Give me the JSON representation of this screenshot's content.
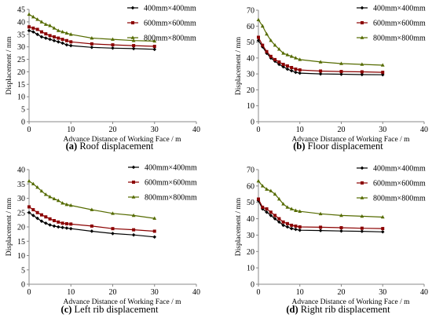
{
  "chart_data": [
    {
      "type": "line",
      "caption_letter": "(a)",
      "caption_text": " Roof displacement",
      "xlabel": "Advance Distance of Working Face / m",
      "ylabel": "Displacement / mm",
      "xlim": [
        0,
        40
      ],
      "ylim": [
        0,
        45
      ],
      "xticks": [
        0,
        10,
        20,
        30,
        40
      ],
      "yticks": [
        0,
        5,
        10,
        15,
        20,
        25,
        30,
        35,
        40,
        45
      ],
      "grid": false,
      "legend_position": "top-right",
      "series": [
        {
          "name": "400mm×400mm",
          "color": "#000000",
          "marker": "diamond",
          "x": [
            0,
            1,
            2,
            3,
            4,
            5,
            6,
            7,
            8,
            9,
            10,
            15,
            20,
            25,
            30
          ],
          "y": [
            36.5,
            36,
            35,
            34,
            33.5,
            33,
            32.5,
            32,
            31.5,
            30.8,
            30.5,
            29.8,
            29.5,
            29.3,
            29
          ]
        },
        {
          "name": "600mm×600mm",
          "color": "#8b0000",
          "marker": "square",
          "x": [
            0,
            1,
            2,
            3,
            4,
            5,
            6,
            7,
            8,
            9,
            10,
            15,
            20,
            25,
            30
          ],
          "y": [
            38,
            37.5,
            37,
            36,
            35.2,
            34.5,
            34,
            33.5,
            33,
            32.5,
            32,
            31.2,
            30.8,
            30.5,
            30.2
          ]
        },
        {
          "name": "800mm×800mm",
          "color": "#556b00",
          "marker": "triangle",
          "x": [
            0,
            1,
            2,
            3,
            4,
            5,
            6,
            7,
            8,
            9,
            10,
            15,
            20,
            25,
            30
          ],
          "y": [
            43,
            42,
            41,
            40,
            39,
            38.5,
            37.5,
            36.5,
            36,
            35.5,
            35,
            33.5,
            33,
            32.5,
            32.3
          ]
        }
      ]
    },
    {
      "type": "line",
      "caption_letter": "(b)",
      "caption_text": " Floor displacement",
      "xlabel": "Advance Distance of Working Face / m",
      "ylabel": "Displacement / mm",
      "xlim": [
        0,
        40
      ],
      "ylim": [
        0,
        70
      ],
      "xticks": [
        0,
        10,
        20,
        30,
        40
      ],
      "yticks": [
        0,
        10,
        20,
        30,
        40,
        50,
        60,
        70
      ],
      "grid": false,
      "legend_position": "top-right",
      "series": [
        {
          "name": "400mm×400mm",
          "color": "#000000",
          "marker": "diamond",
          "x": [
            0,
            1,
            2,
            3,
            4,
            5,
            6,
            7,
            8,
            9,
            10,
            15,
            20,
            25,
            30
          ],
          "y": [
            51,
            47,
            43,
            40,
            38,
            36,
            34.5,
            33,
            32,
            31,
            30.5,
            30,
            29.8,
            29.6,
            29.5
          ]
        },
        {
          "name": "600mm×600mm",
          "color": "#8b0000",
          "marker": "square",
          "x": [
            0,
            1,
            2,
            3,
            4,
            5,
            6,
            7,
            8,
            9,
            10,
            15,
            20,
            25,
            30
          ],
          "y": [
            53,
            48,
            44,
            41,
            39,
            37.5,
            36,
            35,
            34,
            33,
            32.5,
            31.8,
            31.5,
            31.3,
            31
          ]
        },
        {
          "name": "800mm×800mm",
          "color": "#556b00",
          "marker": "triangle",
          "x": [
            0,
            1,
            2,
            3,
            4,
            5,
            6,
            7,
            8,
            9,
            10,
            15,
            20,
            25,
            30
          ],
          "y": [
            64,
            60,
            55,
            51,
            48,
            45.5,
            43,
            42,
            41,
            40,
            39,
            37.5,
            36.5,
            36,
            35.5
          ]
        }
      ]
    },
    {
      "type": "line",
      "caption_letter": "(c)",
      "caption_text": " Left rib displacement",
      "xlabel": "Advance Distance of Working Face / m",
      "ylabel": "Displacement / mm",
      "xlim": [
        0,
        40
      ],
      "ylim": [
        0,
        40
      ],
      "xticks": [
        0,
        10,
        20,
        30,
        40
      ],
      "yticks": [
        0,
        5,
        10,
        15,
        20,
        25,
        30,
        35,
        40
      ],
      "grid": false,
      "legend_position": "top-right",
      "series": [
        {
          "name": "400mm×400mm",
          "color": "#000000",
          "marker": "diamond",
          "x": [
            0,
            1,
            2,
            3,
            4,
            5,
            6,
            7,
            8,
            9,
            10,
            15,
            20,
            25,
            30
          ],
          "y": [
            25,
            24,
            23,
            22,
            21.3,
            20.7,
            20.3,
            20,
            19.8,
            19.6,
            19.4,
            18.5,
            17.7,
            17.2,
            16.5
          ]
        },
        {
          "name": "600mm×600mm",
          "color": "#8b0000",
          "marker": "square",
          "x": [
            0,
            1,
            2,
            3,
            4,
            5,
            6,
            7,
            8,
            9,
            10,
            15,
            20,
            25,
            30
          ],
          "y": [
            27,
            26,
            25,
            24.2,
            23.5,
            22.8,
            22.2,
            21.7,
            21.3,
            21.1,
            21,
            20.3,
            19.4,
            19,
            18.5
          ]
        },
        {
          "name": "800mm×800mm",
          "color": "#556b00",
          "marker": "triangle",
          "x": [
            0,
            1,
            2,
            3,
            4,
            5,
            6,
            7,
            8,
            9,
            10,
            15,
            20,
            25,
            30
          ],
          "y": [
            36,
            35,
            33.8,
            32.5,
            31.3,
            30.5,
            29.8,
            29.2,
            28.3,
            27.8,
            27.5,
            26,
            24.7,
            24,
            23
          ]
        }
      ]
    },
    {
      "type": "line",
      "caption_letter": "(d)",
      "caption_text": " Right rib displacement",
      "xlabel": "Advance Distance of Working Face / m",
      "ylabel": "Displacement / mm",
      "xlim": [
        0,
        40
      ],
      "ylim": [
        0,
        70
      ],
      "xticks": [
        0,
        10,
        20,
        30,
        40
      ],
      "yticks": [
        0,
        10,
        20,
        30,
        40,
        50,
        60,
        70
      ],
      "grid": false,
      "legend_position": "top-right",
      "series": [
        {
          "name": "400mm×400mm",
          "color": "#000000",
          "marker": "diamond",
          "x": [
            0,
            1,
            2,
            3,
            4,
            5,
            6,
            7,
            8,
            9,
            10,
            15,
            20,
            25,
            30
          ],
          "y": [
            51,
            46,
            44,
            42,
            40,
            38,
            36,
            35,
            34,
            33.5,
            33,
            32.8,
            32.5,
            32.3,
            32
          ]
        },
        {
          "name": "600mm×600mm",
          "color": "#8b0000",
          "marker": "square",
          "x": [
            0,
            1,
            2,
            3,
            4,
            5,
            6,
            7,
            8,
            9,
            10,
            15,
            20,
            25,
            30
          ],
          "y": [
            52,
            47,
            46,
            44,
            42,
            40,
            38,
            37,
            36,
            35.5,
            35,
            34.8,
            34.5,
            34.2,
            34
          ]
        },
        {
          "name": "800mm×800mm",
          "color": "#556b00",
          "marker": "triangle",
          "x": [
            0,
            1,
            2,
            3,
            4,
            5,
            6,
            7,
            8,
            9,
            10,
            15,
            20,
            25,
            30
          ],
          "y": [
            63,
            60,
            58,
            57,
            55,
            52,
            49,
            47,
            46,
            45,
            44.5,
            43,
            42,
            41.5,
            41
          ]
        }
      ]
    }
  ]
}
